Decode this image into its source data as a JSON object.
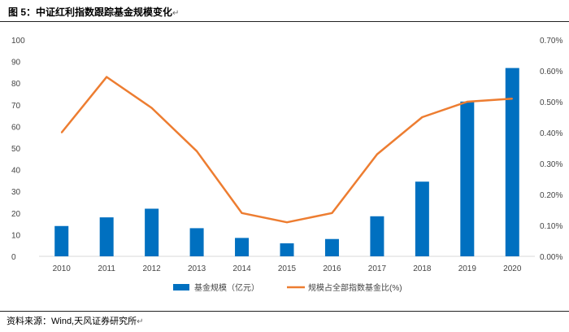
{
  "figure": {
    "title": "图 5：中证红利指数跟踪基金规模变化",
    "return_mark": "↵",
    "source": "资料来源：Wind,天风证券研究所"
  },
  "colors": {
    "bar": "#0070C0",
    "line": "#ED7D31",
    "axis": "#D9D9D9",
    "tick_text": "#444444"
  },
  "chart_data": {
    "type": "bar",
    "categories": [
      "2010",
      "2011",
      "2012",
      "2013",
      "2014",
      "2015",
      "2016",
      "2017",
      "2018",
      "2019",
      "2020"
    ],
    "series": [
      {
        "name": "基金规模（亿元）",
        "type": "bar",
        "axis": "left",
        "values": [
          14,
          18,
          22,
          13,
          8.5,
          6,
          8,
          18.5,
          34.5,
          71.5,
          87
        ]
      },
      {
        "name": "规模占全部指数基金比(%)",
        "type": "line",
        "axis": "right",
        "values": [
          0.4,
          0.58,
          0.48,
          0.34,
          0.14,
          0.11,
          0.14,
          0.33,
          0.45,
          0.5,
          0.51
        ]
      }
    ],
    "left_axis": {
      "ylim": [
        0,
        100
      ],
      "ticks": [
        0,
        10,
        20,
        30,
        40,
        50,
        60,
        70,
        80,
        90,
        100
      ],
      "tick_labels": [
        "0",
        "10",
        "20",
        "30",
        "40",
        "50",
        "60",
        "70",
        "80",
        "90",
        "100"
      ]
    },
    "right_axis": {
      "ylim": [
        0,
        0.7
      ],
      "ticks": [
        0,
        0.1,
        0.2,
        0.3,
        0.4,
        0.5,
        0.6,
        0.7
      ],
      "tick_labels": [
        "0.00%",
        "0.10%",
        "0.20%",
        "0.30%",
        "0.40%",
        "0.50%",
        "0.60%",
        "0.70%"
      ]
    },
    "legend": {
      "position": "bottom-center",
      "items": [
        "基金规模（亿元）",
        "规模占全部指数基金比(%)"
      ]
    },
    "title": "",
    "xlabel": "",
    "ylabel": "",
    "grid": false
  }
}
